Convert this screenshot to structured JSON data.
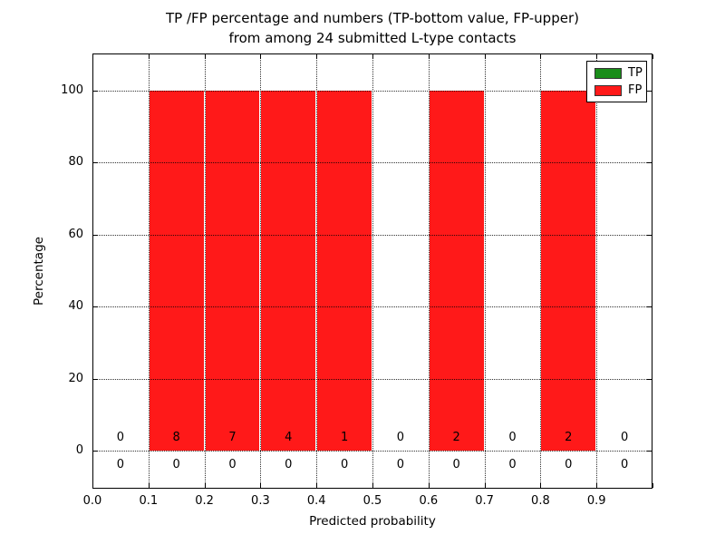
{
  "title": {
    "line1": "TP /FP percentage and numbers (TP-bottom value, FP-upper)",
    "line2": "from among 24 submitted L-type contacts"
  },
  "axes": {
    "xlabel": "Predicted probability",
    "ylabel": "Percentage"
  },
  "legend": {
    "items": [
      {
        "label": "TP",
        "color": "#1a8d1a"
      },
      {
        "label": "FP",
        "color": "#ff1919"
      }
    ]
  },
  "chart_data": {
    "type": "bar",
    "title": "TP /FP percentage and numbers (TP-bottom value, FP-upper) from among 24 submitted L-type contacts",
    "xlabel": "Predicted probability",
    "ylabel": "Percentage",
    "xlim": [
      0.0,
      1.0
    ],
    "ylim": [
      -11,
      110
    ],
    "grid": true,
    "legend_position": "upper right",
    "bin_edges": [
      0.0,
      0.1,
      0.2,
      0.3,
      0.4,
      0.5,
      0.6,
      0.7,
      0.8,
      0.9,
      1.0
    ],
    "bin_centers": [
      0.05,
      0.15,
      0.25,
      0.35,
      0.45,
      0.55,
      0.65,
      0.75,
      0.85,
      0.95
    ],
    "x_tick_labels": [
      "0.0",
      "0.1",
      "0.2",
      "0.3",
      "0.4",
      "0.5",
      "0.6",
      "0.7",
      "0.8",
      "0.9"
    ],
    "y_ticks": [
      0,
      20,
      40,
      60,
      80,
      100
    ],
    "series": [
      {
        "name": "TP",
        "color": "#1a8d1a",
        "percentages": [
          0,
          0,
          0,
          0,
          0,
          0,
          0,
          0,
          0,
          0
        ],
        "counts": [
          0,
          0,
          0,
          0,
          0,
          0,
          0,
          0,
          0,
          0
        ],
        "count_row": "bottom"
      },
      {
        "name": "FP",
        "color": "#ff1919",
        "percentages": [
          0,
          100,
          100,
          100,
          100,
          0,
          100,
          0,
          100,
          0
        ],
        "counts": [
          0,
          8,
          7,
          4,
          1,
          0,
          2,
          0,
          2,
          0
        ],
        "count_row": "top"
      }
    ]
  }
}
